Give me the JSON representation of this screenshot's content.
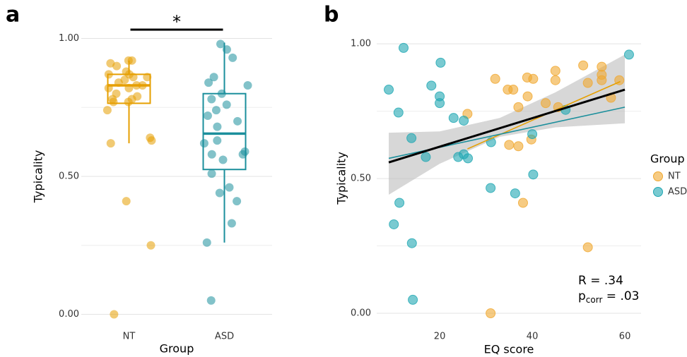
{
  "chart_data": [
    {
      "type": "box",
      "panel_label": "a",
      "xlabel": "Group",
      "ylabel": "Typicality",
      "categories": [
        "NT",
        "ASD"
      ],
      "ylim": [
        -0.05,
        1.05
      ],
      "yticks": [
        {
          "value": 0,
          "label": "0.00"
        },
        {
          "value": 0.5,
          "label": "0.50"
        },
        {
          "value": 1,
          "label": "1.00"
        }
      ],
      "minor_yticks": [
        0.25,
        0.75
      ],
      "grid": true,
      "significance": "*",
      "series": [
        {
          "name": "NT",
          "color": "#e69f00",
          "whisker_low": 0.62,
          "q1": 0.765,
          "median": 0.83,
          "q3": 0.87,
          "whisker_high": 0.92,
          "points": [
            0.92,
            0.92,
            0.91,
            0.9,
            0.88,
            0.87,
            0.87,
            0.86,
            0.86,
            0.85,
            0.84,
            0.83,
            0.83,
            0.82,
            0.82,
            0.8,
            0.79,
            0.78,
            0.78,
            0.77,
            0.77,
            0.74,
            0.64,
            0.63,
            0.62,
            0.41,
            0.25,
            0.0
          ]
        },
        {
          "name": "ASD",
          "color": "#1b8f9c",
          "whisker_low": 0.26,
          "q1": 0.525,
          "median": 0.655,
          "q3": 0.8,
          "whisker_high": 0.985,
          "points": [
            0.98,
            0.96,
            0.93,
            0.86,
            0.84,
            0.83,
            0.8,
            0.78,
            0.76,
            0.74,
            0.72,
            0.7,
            0.68,
            0.63,
            0.62,
            0.59,
            0.58,
            0.58,
            0.56,
            0.51,
            0.46,
            0.44,
            0.41,
            0.33,
            0.26,
            0.05
          ]
        }
      ]
    },
    {
      "type": "scatter",
      "panel_label": "b",
      "xlabel": "EQ score",
      "ylabel": "Typicality",
      "xlim": [
        6.4,
        63.5
      ],
      "xticks": [
        20,
        40,
        60
      ],
      "ylim": [
        -0.055,
        1.058
      ],
      "yticks": [
        {
          "value": 0,
          "label": "0.00"
        },
        {
          "value": 0.5,
          "label": "0.50"
        },
        {
          "value": 1,
          "label": "1.00"
        }
      ],
      "minor_yticks": [
        0.25,
        0.75
      ],
      "grid": true,
      "legend_title": "Group",
      "legend": "right",
      "series": [
        {
          "name": "NT",
          "color": "#f0a830",
          "x": [
            26,
            32,
            34.7,
            35.9,
            37,
            38.9,
            40.2,
            39,
            35,
            37,
            39.8,
            38,
            42.9,
            45,
            45,
            45.6,
            51,
            52,
            55,
            55,
            55,
            58.8,
            57,
            52,
            31
          ],
          "y": [
            0.74,
            0.87,
            0.83,
            0.83,
            0.765,
            0.875,
            0.87,
            0.805,
            0.625,
            0.62,
            0.645,
            0.41,
            0.78,
            0.9,
            0.865,
            0.765,
            0.92,
            0.855,
            0.915,
            0.885,
            0.865,
            0.865,
            0.8,
            0.245,
            0.0
          ]
        },
        {
          "name": "ASD",
          "color": "#1fa7b3",
          "x": [
            12.2,
            9,
            11.1,
            13.9,
            18.2,
            20,
            20,
            20.2,
            23,
            25.2,
            24,
            25.2,
            26.1,
            17,
            31.1,
            31,
            36.3,
            40,
            40.2,
            47.2,
            60.9,
            11.3,
            10.1,
            14,
            14.2
          ],
          "y": [
            0.985,
            0.83,
            0.745,
            0.65,
            0.845,
            0.805,
            0.78,
            0.93,
            0.725,
            0.715,
            0.58,
            0.59,
            0.575,
            0.58,
            0.635,
            0.465,
            0.445,
            0.665,
            0.515,
            0.755,
            0.96,
            0.41,
            0.33,
            0.26,
            0.05
          ]
        }
      ],
      "band": {
        "x": [
          9,
          20,
          33,
          45,
          60
        ],
        "upper": [
          0.67,
          0.675,
          0.725,
          0.82,
          0.96
        ],
        "lower": [
          0.44,
          0.555,
          0.655,
          0.69,
          0.705
        ],
        "color": "#bdbdbd"
      },
      "fits": [
        {
          "color": "#e69f00",
          "x": [
            26,
            59
          ],
          "y": [
            0.61,
            0.86
          ]
        },
        {
          "color": "#1b8f9c",
          "x": [
            9,
            60
          ],
          "y": [
            0.575,
            0.765
          ]
        },
        {
          "color": "#000000",
          "x": [
            9,
            60
          ],
          "y": [
            0.56,
            0.83
          ]
        }
      ],
      "annotation": {
        "r": "R = .34",
        "p": "p",
        "p_sub": "corr",
        "p_value": " = .03"
      }
    }
  ]
}
